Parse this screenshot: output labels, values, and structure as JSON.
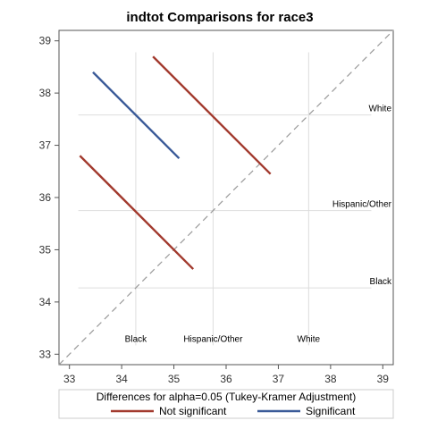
{
  "chart_data": {
    "type": "line",
    "title": "indtot Comparisons for race3",
    "xlabel": "",
    "ylabel": "",
    "xlim": [
      32.8,
      39.2
    ],
    "ylim": [
      32.8,
      39.2
    ],
    "x_ticks": [
      33,
      34,
      35,
      36,
      37,
      38,
      39
    ],
    "y_ticks": [
      33,
      34,
      35,
      36,
      37,
      38,
      39
    ],
    "levels": [
      {
        "name": "Black",
        "mean": 34.27
      },
      {
        "name": "Hispanic/Other",
        "mean": 35.75
      },
      {
        "name": "White",
        "mean": 37.58
      }
    ],
    "diagonal": {
      "style": "dashed",
      "color": "#999999"
    },
    "segments": [
      {
        "pair": [
          "White",
          "Hispanic/Other"
        ],
        "x": [
          34.6,
          36.85
        ],
        "y": [
          38.7,
          36.45
        ],
        "group": "not_significant"
      },
      {
        "pair": [
          "White",
          "Black"
        ],
        "x": [
          33.45,
          35.1
        ],
        "y": [
          38.4,
          36.75
        ],
        "group": "significant"
      },
      {
        "pair": [
          "Hispanic/Other",
          "Black"
        ],
        "x": [
          33.2,
          35.37
        ],
        "y": [
          36.8,
          34.63
        ],
        "group": "not_significant"
      }
    ],
    "legend": {
      "title": "Differences for alpha=0.05 (Tukey-Kramer Adjustment)",
      "placement": "bottom",
      "entries": [
        {
          "key": "not_significant",
          "label": "Not significant",
          "color": "#A23A2E"
        },
        {
          "key": "significant",
          "label": "Significant",
          "color": "#3A5A98"
        }
      ]
    },
    "grid": false
  }
}
